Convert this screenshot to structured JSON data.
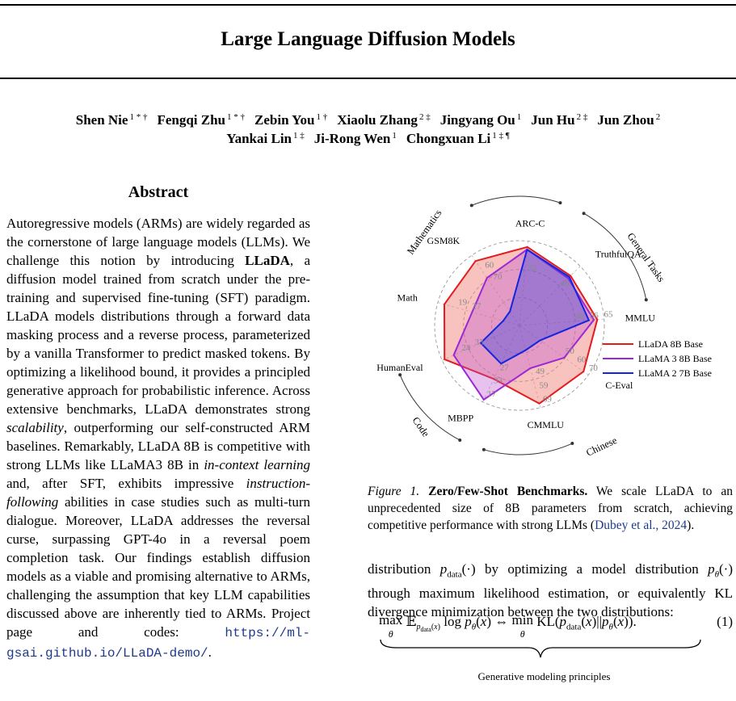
{
  "title": "Large Language Diffusion Models",
  "authors_line1": [
    {
      "name": "Shen Nie",
      "aff": "1 * †"
    },
    {
      "name": "Fengqi Zhu",
      "aff": "1 * †"
    },
    {
      "name": "Zebin You",
      "aff": "1 †"
    },
    {
      "name": "Xiaolu Zhang",
      "aff": "2 ‡"
    },
    {
      "name": "Jingyang Ou",
      "aff": "1"
    },
    {
      "name": "Jun Hu",
      "aff": "2 ‡"
    },
    {
      "name": "Jun Zhou",
      "aff": "2"
    }
  ],
  "authors_line2": [
    {
      "name": "Yankai Lin",
      "aff": "1 ‡"
    },
    {
      "name": "Ji-Rong Wen",
      "aff": "1"
    },
    {
      "name": "Chongxuan Li",
      "aff": "1 ‡ ¶"
    }
  ],
  "abstract": {
    "heading": "Abstract",
    "part1": "Autoregressive models (ARMs) are widely regarded as the cornerstone of large language models (LLMs). We challenge this notion by introducing ",
    "model_name": "LLaDA",
    "part2": ", a diffusion model trained from scratch under the pre-training and supervised fine-tuning (SFT) paradigm. LLaDA models distributions through a forward data masking process and a reverse process, parameterized by a vanilla Transformer to predict masked tokens. By optimizing a likelihood bound, it provides a principled generative approach for probabilistic inference. Across extensive benchmarks, LLaDA demonstrates strong ",
    "em1": "scalability",
    "part3": ", outperforming our self-constructed ARM baselines. Remarkably, LLaDA 8B is competitive with strong LLMs like LLaMA3 8B in ",
    "em2": "in-context learning",
    "part4": " and, after SFT, exhibits impressive ",
    "em3": "instruction-following",
    "part5": " abilities in case studies such as multi-turn dialogue. Moreover, LLaDA addresses the reversal curse, surpassing GPT-4o in a reversal poem completion task. Our findings establish diffusion models as a viable and promising alternative to ARMs, challenging the assumption that key LLM capabilities discussed above are inherently tied to ARMs. Project page and codes: ",
    "url": "https://ml-gsai.github.io/LLaDA-demo/",
    "end": "."
  },
  "chart_data": {
    "type": "radar",
    "categories": [
      "ARC-C",
      "TruthfulQA",
      "MMLU",
      "C-Eval",
      "CMMLU",
      "MBPP",
      "HumanEval",
      "Math",
      "GSM8K"
    ],
    "tick_labels": {
      "ARC-C": [
        "52"
      ],
      "TruthfulQA": [
        "46"
      ],
      "MMLU": [
        "46",
        "56",
        "65"
      ],
      "C-Eval": [
        "50",
        "60",
        "70"
      ],
      "CMMLU": [
        "49",
        "59",
        "69"
      ],
      "MBPP": [
        "27",
        "33",
        "17"
      ],
      "HumanEval": [
        "33",
        "24"
      ],
      "Math": [
        "27",
        "19"
      ],
      "GSM8K": [
        "70",
        "60"
      ]
    },
    "group_labels": [
      "Mathematics",
      "General Tasks",
      "Code",
      "Chinese"
    ],
    "legend_position": "right",
    "series": [
      {
        "name": "LLaDA 8B Base",
        "color": "#e41a1c",
        "values": [
          0.93,
          0.84,
          0.92,
          0.93,
          0.95,
          0.7,
          0.97,
          0.92,
          0.92
        ]
      },
      {
        "name": "LLaMA 3 8B Base",
        "color": "#9b27d6",
        "values": [
          0.9,
          0.8,
          0.88,
          0.65,
          0.52,
          0.97,
          0.85,
          0.58,
          0.68
        ]
      },
      {
        "name": "LLaMA 2 7B Base",
        "color": "#1424e0",
        "values": [
          0.9,
          0.82,
          0.82,
          0.3,
          0.3,
          0.5,
          0.5,
          0.2,
          0.2
        ]
      }
    ]
  },
  "caption": {
    "label": "Figure 1.",
    "bold": "Zero/Few-Shot Benchmarks.",
    "text": " We scale LLaDA to an unprecedented size of 8B parameters from scratch, achieving competitive performance with strong LLMs (",
    "cite": "Dubey et al., 2024",
    "end": ")."
  },
  "body_text": "distribution p_data(·) by optimizing a model distribution p_θ(·) through maximum likelihood estimation, or equivalently KL divergence minimization between the two distributions:",
  "equation": {
    "text": "max_θ E_{p_data(x)} log p_θ(x) ⇔ min_θ KL(p_data(x)||p_θ(x)).",
    "number": "(1)",
    "underbrace_label": "Generative modeling principles"
  }
}
